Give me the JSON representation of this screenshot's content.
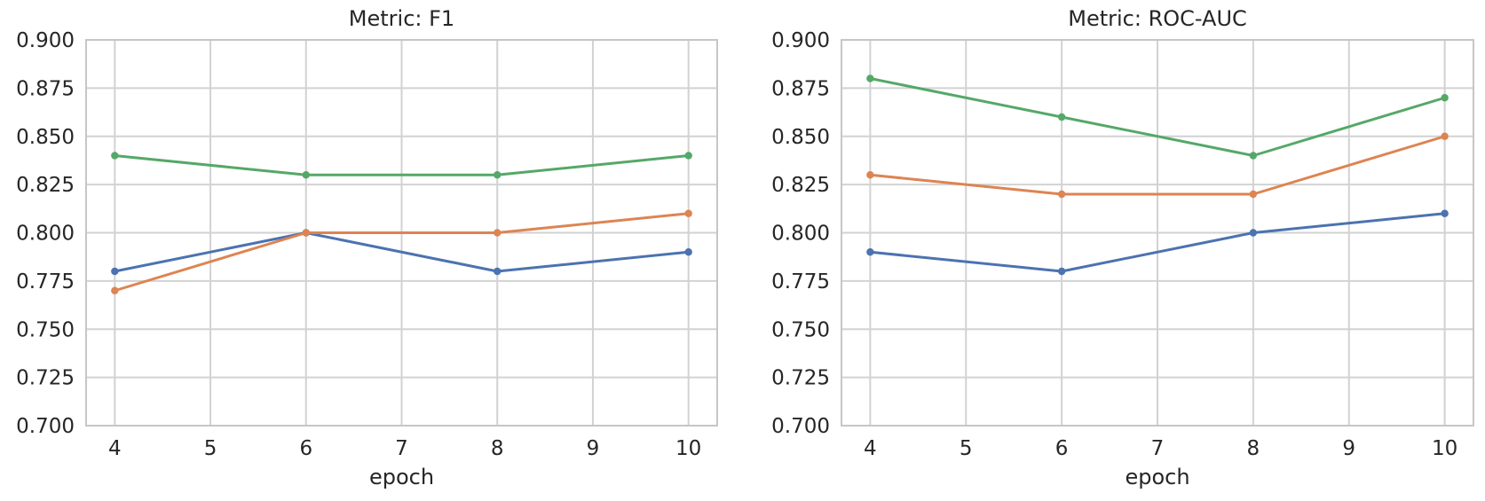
{
  "styles": {
    "background": "#ffffff",
    "grid_color": "#d2d2d2",
    "spine_color": "#c6c6c6",
    "text_color": "#262626"
  },
  "chart_data": [
    {
      "type": "line",
      "title": "Metric: F1",
      "xlabel": "epoch",
      "ylabel": "",
      "grid": true,
      "legend": "none",
      "xlim": [
        3.7,
        10.3
      ],
      "ylim": [
        0.7,
        0.9
      ],
      "x": [
        4,
        6,
        8,
        10
      ],
      "xticks": [
        4,
        5,
        6,
        7,
        8,
        9,
        10
      ],
      "xtick_labels": [
        "4",
        "5",
        "6",
        "7",
        "8",
        "9",
        "10"
      ],
      "yticks": [
        0.7,
        0.725,
        0.75,
        0.775,
        0.8,
        0.825,
        0.85,
        0.875,
        0.9
      ],
      "ytick_labels": [
        "0.700",
        "0.725",
        "0.750",
        "0.775",
        "0.800",
        "0.825",
        "0.850",
        "0.875",
        "0.900"
      ],
      "series": [
        {
          "name": "blue",
          "color": "#4C72B0",
          "values": [
            0.78,
            0.8,
            0.78,
            0.79
          ]
        },
        {
          "name": "orange",
          "color": "#DD8452",
          "values": [
            0.77,
            0.8,
            0.8,
            0.81
          ]
        },
        {
          "name": "green",
          "color": "#55A868",
          "values": [
            0.84,
            0.83,
            0.83,
            0.84
          ]
        }
      ]
    },
    {
      "type": "line",
      "title": "Metric: ROC-AUC",
      "xlabel": "epoch",
      "ylabel": "",
      "grid": true,
      "legend": "none",
      "xlim": [
        3.7,
        10.3
      ],
      "ylim": [
        0.7,
        0.9
      ],
      "x": [
        4,
        6,
        8,
        10
      ],
      "xticks": [
        4,
        5,
        6,
        7,
        8,
        9,
        10
      ],
      "xtick_labels": [
        "4",
        "5",
        "6",
        "7",
        "8",
        "9",
        "10"
      ],
      "yticks": [
        0.7,
        0.725,
        0.75,
        0.775,
        0.8,
        0.825,
        0.85,
        0.875,
        0.9
      ],
      "ytick_labels": [
        "0.700",
        "0.725",
        "0.750",
        "0.775",
        "0.800",
        "0.825",
        "0.850",
        "0.875",
        "0.900"
      ],
      "series": [
        {
          "name": "blue",
          "color": "#4C72B0",
          "values": [
            0.79,
            0.78,
            0.8,
            0.81
          ]
        },
        {
          "name": "orange",
          "color": "#DD8452",
          "values": [
            0.83,
            0.82,
            0.82,
            0.85
          ]
        },
        {
          "name": "green",
          "color": "#55A868",
          "values": [
            0.88,
            0.86,
            0.84,
            0.87
          ]
        }
      ]
    }
  ]
}
